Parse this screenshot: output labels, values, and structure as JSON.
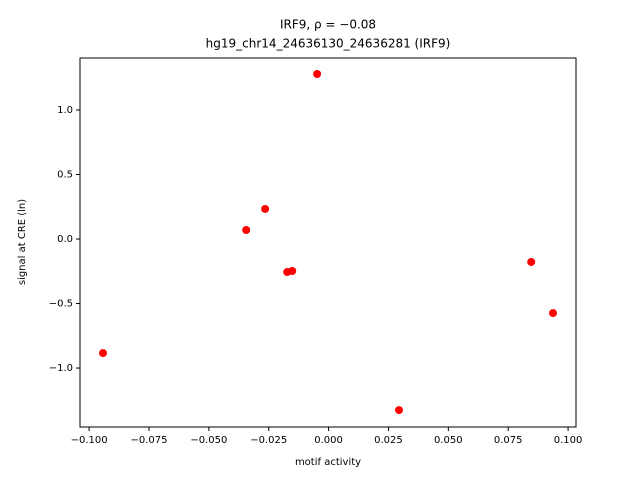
{
  "chart_data": {
    "type": "scatter",
    "title": "IRF9, ρ = −0.08",
    "subtitle": "hg19_chr14_24636130_24636281 (IRF9)",
    "x_label": "motif activity",
    "y_label": "signal at CRE (ln)",
    "color": "#ff0000",
    "x": [
      -0.0048,
      -0.0265,
      -0.0344,
      -0.0173,
      -0.0152,
      -0.0942,
      0.0294,
      0.0846,
      0.0937
    ],
    "values": [
      1.279,
      0.233,
      0.07,
      -0.256,
      -0.248,
      -0.884,
      -1.326,
      -0.178,
      -0.574
    ],
    "xlim": [
      -0.1038,
      0.1033
    ],
    "ylim": [
      -1.457,
      1.403
    ],
    "xticks": [
      {
        "value": -0.1,
        "label": "−0.100"
      },
      {
        "value": -0.075,
        "label": "−0.075"
      },
      {
        "value": -0.05,
        "label": "−0.050"
      },
      {
        "value": -0.025,
        "label": "−0.025"
      },
      {
        "value": 0,
        "label": "0.000"
      },
      {
        "value": 0.025,
        "label": "0.025"
      },
      {
        "value": 0.05,
        "label": "0.050"
      },
      {
        "value": 0.075,
        "label": "0.075"
      },
      {
        "value": 0.1,
        "label": "0.100"
      }
    ],
    "yticks": [
      {
        "value": -1,
        "label": "−1.0"
      },
      {
        "value": -0.5,
        "label": "−0.5"
      },
      {
        "value": 0,
        "label": "0.0"
      },
      {
        "value": 0.5,
        "label": "0.5"
      },
      {
        "value": 1,
        "label": "1.0"
      }
    ],
    "grid": false
  }
}
